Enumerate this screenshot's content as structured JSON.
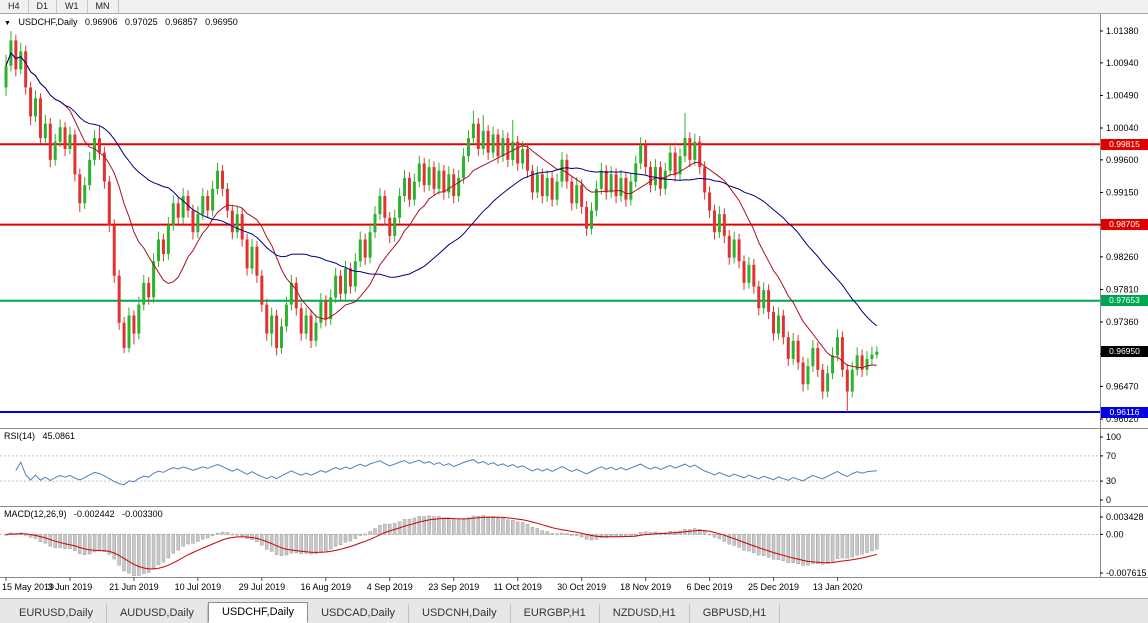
{
  "toolbar": {
    "periods": [
      "H4",
      "D1",
      "W1",
      "MN"
    ]
  },
  "main_chart_label": {
    "symbol": "USDCHF,Daily",
    "open": "0.96906",
    "high": "0.97025",
    "low": "0.96857",
    "close": "0.96950"
  },
  "rsi_label": {
    "name": "RSI(14)",
    "value": "45.0861"
  },
  "macd_label": {
    "name": "MACD(12,26,9)",
    "value1": "-0.002442",
    "value2": "-0.003300"
  },
  "tabs": {
    "items": [
      {
        "label": "EURUSD,Daily",
        "active": false
      },
      {
        "label": "AUDUSD,Daily",
        "active": false
      },
      {
        "label": "USDCHF,Daily",
        "active": true
      },
      {
        "label": "USDCAD,Daily",
        "active": false
      },
      {
        "label": "USDCNH,Daily",
        "active": false
      },
      {
        "label": "EURGBP,H1",
        "active": false
      },
      {
        "label": "NZDUSD,H1",
        "active": false
      },
      {
        "label": "GBPUSD,H1",
        "active": false
      }
    ]
  },
  "chart_data": {
    "type": "candlestick",
    "symbol": "USDCHF",
    "timeframe": "Daily",
    "colors": {
      "up": "#2DB22D",
      "down": "#E03232"
    },
    "price_range": {
      "top": 1.0138,
      "bottom": 0.9602
    },
    "price_axis_ticks": [
      "1.01380",
      "1.00940",
      "1.00490",
      "1.00040",
      "0.99600",
      "0.99150",
      "0.98700",
      "0.98260",
      "0.97810",
      "0.97360",
      "0.96920",
      "0.96470",
      "0.96020"
    ],
    "x_labels": [
      "15 May 2019",
      "3 Jun 2019",
      "21 Jun 2019",
      "10 Jul 2019",
      "29 Jul 2019",
      "16 Aug 2019",
      "4 Sep 2019",
      "23 Sep 2019",
      "11 Oct 2019",
      "30 Oct 2019",
      "18 Nov 2019",
      "6 Dec 2019",
      "25 Dec 2019",
      "13 Jan 2020"
    ],
    "x_label_interval": 13,
    "hlines": [
      {
        "price": 0.99815,
        "label": "0.99815",
        "color": "#E00000",
        "width": 2
      },
      {
        "price": 0.98705,
        "label": "0.98705",
        "color": "#E00000",
        "width": 2
      },
      {
        "price": 0.97653,
        "label": "0.97653",
        "color": "#00A550",
        "width": 2
      },
      {
        "price": 0.96116,
        "label": "0.96116",
        "color": "#0000E0",
        "width": 2
      }
    ],
    "current_price": {
      "price": 0.9695,
      "label": "0.96950",
      "color": "#000000"
    },
    "moving_averages": [
      {
        "period": 13,
        "color": "#AA1122",
        "name": "ma-fast"
      },
      {
        "period": 34,
        "color": "#000080",
        "name": "ma-slow"
      }
    ],
    "rsi": {
      "period": 14,
      "current": 45.0861,
      "color": "#4F81BD",
      "levels": [
        70,
        30
      ],
      "scale_ticks": [
        "100",
        "70",
        "30",
        "0"
      ]
    },
    "macd": {
      "fast": 12,
      "slow": 26,
      "signal": 9,
      "current_macd": -0.002442,
      "current_signal": -0.0033,
      "range": {
        "top": 0.003428,
        "bottom": -0.007615
      },
      "scale_ticks": [
        "0.003428",
        "0.00",
        "-0.007615"
      ],
      "hist_color": "#C8C8C8",
      "hist_stroke": "#9E9E9E",
      "signal_color": "#CC0000"
    },
    "candles": [
      [
        1.006,
        1.0105,
        1.0048,
        1.009
      ],
      [
        1.009,
        1.0138,
        1.0082,
        1.0125
      ],
      [
        1.0125,
        1.0133,
        1.0075,
        1.0085
      ],
      [
        1.0085,
        1.0122,
        1.0078,
        1.011
      ],
      [
        1.011,
        1.0118,
        1.005,
        1.006
      ],
      [
        1.006,
        1.0068,
        1.0008,
        1.002
      ],
      [
        1.002,
        1.0056,
        1.0012,
        1.0045
      ],
      [
        1.0045,
        1.0052,
        0.998,
        0.999
      ],
      [
        0.999,
        1.0022,
        0.9982,
        1.001
      ],
      [
        1.001,
        1.0018,
        0.995,
        0.996
      ],
      [
        0.996,
        0.9996,
        0.9952,
        0.9985
      ],
      [
        0.9985,
        1.0016,
        0.9978,
        1.0005
      ],
      [
        1.0005,
        1.0012,
        0.9965,
        0.9975
      ],
      [
        0.9975,
        1.0006,
        0.9968,
        0.9995
      ],
      [
        0.9995,
        1.0002,
        0.993,
        0.994
      ],
      [
        0.994,
        0.9948,
        0.9888,
        0.99
      ],
      [
        0.99,
        0.9936,
        0.9892,
        0.9925
      ],
      [
        0.9925,
        0.9971,
        0.9918,
        0.996
      ],
      [
        0.996,
        1.0001,
        0.9952,
        0.999
      ],
      [
        0.999,
        1.0008,
        0.996,
        0.997
      ],
      [
        0.997,
        0.9978,
        0.992,
        0.993
      ],
      [
        0.993,
        0.9938,
        0.986,
        0.987
      ],
      [
        0.987,
        0.9878,
        0.979,
        0.98
      ],
      [
        0.98,
        0.9808,
        0.9725,
        0.9735
      ],
      [
        0.9735,
        0.9743,
        0.9693,
        0.97
      ],
      [
        0.97,
        0.9756,
        0.9694,
        0.9745
      ],
      [
        0.9745,
        0.9752,
        0.9705,
        0.972
      ],
      [
        0.972,
        0.9771,
        0.9712,
        0.976
      ],
      [
        0.976,
        0.9801,
        0.9752,
        0.979
      ],
      [
        0.979,
        0.9798,
        0.976,
        0.977
      ],
      [
        0.977,
        0.9831,
        0.9762,
        0.982
      ],
      [
        0.982,
        0.9861,
        0.9812,
        0.985
      ],
      [
        0.985,
        0.9858,
        0.982,
        0.983
      ],
      [
        0.983,
        0.9881,
        0.9822,
        0.987
      ],
      [
        0.987,
        0.9911,
        0.9862,
        0.99
      ],
      [
        0.99,
        0.9908,
        0.987,
        0.988
      ],
      [
        0.988,
        0.9921,
        0.9872,
        0.991
      ],
      [
        0.991,
        0.9918,
        0.988,
        0.989
      ],
      [
        0.989,
        0.9898,
        0.985,
        0.986
      ],
      [
        0.986,
        0.9896,
        0.9852,
        0.9885
      ],
      [
        0.9885,
        0.9921,
        0.9877,
        0.991
      ],
      [
        0.991,
        0.9918,
        0.988,
        0.989
      ],
      [
        0.989,
        0.9931,
        0.9882,
        0.992
      ],
      [
        0.992,
        0.9956,
        0.9912,
        0.9945
      ],
      [
        0.9945,
        0.9953,
        0.991,
        0.992
      ],
      [
        0.992,
        0.9928,
        0.988,
        0.989
      ],
      [
        0.989,
        0.9898,
        0.985,
        0.986
      ],
      [
        0.986,
        0.9896,
        0.9852,
        0.9885
      ],
      [
        0.9885,
        0.9893,
        0.984,
        0.985
      ],
      [
        0.985,
        0.9858,
        0.98,
        0.981
      ],
      [
        0.981,
        0.9851,
        0.9802,
        0.984
      ],
      [
        0.984,
        0.9848,
        0.979,
        0.98
      ],
      [
        0.98,
        0.9808,
        0.975,
        0.976
      ],
      [
        0.976,
        0.9768,
        0.971,
        0.972
      ],
      [
        0.972,
        0.9756,
        0.9702,
        0.9745
      ],
      [
        0.9745,
        0.9753,
        0.969,
        0.97
      ],
      [
        0.97,
        0.9741,
        0.9692,
        0.973
      ],
      [
        0.973,
        0.9771,
        0.9722,
        0.976
      ],
      [
        0.976,
        0.9801,
        0.9752,
        0.979
      ],
      [
        0.979,
        0.9798,
        0.9745,
        0.9755
      ],
      [
        0.9755,
        0.9763,
        0.971,
        0.972
      ],
      [
        0.972,
        0.9756,
        0.9712,
        0.9745
      ],
      [
        0.9745,
        0.9753,
        0.97,
        0.971
      ],
      [
        0.971,
        0.9746,
        0.9702,
        0.9735
      ],
      [
        0.9735,
        0.9776,
        0.9727,
        0.9765
      ],
      [
        0.9765,
        0.9773,
        0.973,
        0.974
      ],
      [
        0.974,
        0.9781,
        0.9732,
        0.977
      ],
      [
        0.977,
        0.9811,
        0.9762,
        0.98
      ],
      [
        0.98,
        0.9808,
        0.9765,
        0.9775
      ],
      [
        0.9775,
        0.9821,
        0.9767,
        0.981
      ],
      [
        0.981,
        0.9818,
        0.9775,
        0.9785
      ],
      [
        0.9785,
        0.9831,
        0.9777,
        0.982
      ],
      [
        0.982,
        0.9861,
        0.9812,
        0.985
      ],
      [
        0.985,
        0.9858,
        0.9815,
        0.9825
      ],
      [
        0.9825,
        0.9871,
        0.9817,
        0.986
      ],
      [
        0.986,
        0.9896,
        0.9852,
        0.9885
      ],
      [
        0.9885,
        0.9921,
        0.9877,
        0.991
      ],
      [
        0.991,
        0.9918,
        0.987,
        0.988
      ],
      [
        0.988,
        0.9888,
        0.9845,
        0.9855
      ],
      [
        0.9855,
        0.9891,
        0.9847,
        0.988
      ],
      [
        0.988,
        0.9921,
        0.9872,
        0.991
      ],
      [
        0.991,
        0.9946,
        0.9902,
        0.9935
      ],
      [
        0.9935,
        0.9943,
        0.9895,
        0.9905
      ],
      [
        0.9905,
        0.9941,
        0.9897,
        0.993
      ],
      [
        0.993,
        0.9966,
        0.9922,
        0.9955
      ],
      [
        0.9955,
        0.9963,
        0.9915,
        0.9925
      ],
      [
        0.9925,
        0.9961,
        0.9917,
        0.995
      ],
      [
        0.995,
        0.9958,
        0.991,
        0.992
      ],
      [
        0.992,
        0.9956,
        0.9912,
        0.9945
      ],
      [
        0.9945,
        0.9953,
        0.9905,
        0.9915
      ],
      [
        0.9915,
        0.9951,
        0.9907,
        0.994
      ],
      [
        0.994,
        0.9948,
        0.99,
        0.991
      ],
      [
        0.991,
        0.9946,
        0.9902,
        0.9935
      ],
      [
        0.9935,
        0.9976,
        0.9927,
        0.9965
      ],
      [
        0.9965,
        1.0001,
        0.9957,
        0.999
      ],
      [
        0.999,
        1.0028,
        0.9982,
        1.001
      ],
      [
        1.001,
        1.0018,
        0.9965,
        0.9975
      ],
      [
        0.9975,
        1.0022,
        0.9967,
        1.0
      ],
      [
        1.0,
        1.0008,
        0.996,
        0.997
      ],
      [
        0.997,
        1.0006,
        0.9962,
        0.9995
      ],
      [
        0.9995,
        1.0003,
        0.9955,
        0.9965
      ],
      [
        0.9965,
        1.0001,
        0.9957,
        0.999
      ],
      [
        0.999,
        0.9998,
        0.995,
        0.996
      ],
      [
        0.996,
        1.0015,
        0.9952,
        0.9985
      ],
      [
        0.9985,
        0.9993,
        0.9945,
        0.9955
      ],
      [
        0.9955,
        0.9986,
        0.9947,
        0.9975
      ],
      [
        0.9975,
        0.9983,
        0.9935,
        0.9945
      ],
      [
        0.9945,
        0.9953,
        0.9905,
        0.9915
      ],
      [
        0.9915,
        0.9951,
        0.9907,
        0.994
      ],
      [
        0.994,
        0.9948,
        0.99,
        0.991
      ],
      [
        0.991,
        0.9946,
        0.9902,
        0.9935
      ],
      [
        0.9935,
        0.9943,
        0.9895,
        0.9905
      ],
      [
        0.9905,
        0.9941,
        0.9897,
        0.993
      ],
      [
        0.993,
        0.9971,
        0.9922,
        0.996
      ],
      [
        0.996,
        0.9968,
        0.992,
        0.993
      ],
      [
        0.993,
        0.9938,
        0.989,
        0.99
      ],
      [
        0.99,
        0.9936,
        0.9892,
        0.9925
      ],
      [
        0.9925,
        0.9933,
        0.9885,
        0.9895
      ],
      [
        0.9895,
        0.9903,
        0.9855,
        0.9865
      ],
      [
        0.9865,
        0.9901,
        0.9857,
        0.989
      ],
      [
        0.989,
        0.9931,
        0.9882,
        0.992
      ],
      [
        0.992,
        0.9956,
        0.9912,
        0.9945
      ],
      [
        0.9945,
        0.9953,
        0.9905,
        0.9915
      ],
      [
        0.9915,
        0.9951,
        0.9907,
        0.994
      ],
      [
        0.994,
        0.9948,
        0.99,
        0.991
      ],
      [
        0.991,
        0.9946,
        0.9902,
        0.9935
      ],
      [
        0.9935,
        0.9943,
        0.9895,
        0.9905
      ],
      [
        0.9905,
        0.9941,
        0.9897,
        0.993
      ],
      [
        0.993,
        0.9966,
        0.9922,
        0.9955
      ],
      [
        0.9955,
        0.9991,
        0.9947,
        0.998
      ],
      [
        0.998,
        0.9988,
        0.994,
        0.995
      ],
      [
        0.995,
        0.9958,
        0.9915,
        0.9925
      ],
      [
        0.9925,
        0.9961,
        0.9917,
        0.995
      ],
      [
        0.995,
        0.9958,
        0.991,
        0.992
      ],
      [
        0.992,
        0.9956,
        0.9912,
        0.9945
      ],
      [
        0.9945,
        0.9981,
        0.9937,
        0.997
      ],
      [
        0.997,
        0.9978,
        0.993,
        0.994
      ],
      [
        0.994,
        0.9976,
        0.9932,
        0.9965
      ],
      [
        0.9965,
        1.0025,
        0.9957,
        0.999
      ],
      [
        0.999,
        0.9998,
        0.995,
        0.996
      ],
      [
        0.996,
        0.9996,
        0.9952,
        0.9985
      ],
      [
        0.9985,
        0.9993,
        0.994,
        0.995
      ],
      [
        0.995,
        0.9958,
        0.9905,
        0.9915
      ],
      [
        0.9915,
        0.9923,
        0.988,
        0.989
      ],
      [
        0.989,
        0.9898,
        0.985,
        0.986
      ],
      [
        0.986,
        0.9896,
        0.9852,
        0.9885
      ],
      [
        0.9885,
        0.9893,
        0.9845,
        0.9855
      ],
      [
        0.9855,
        0.9863,
        0.9815,
        0.9825
      ],
      [
        0.9825,
        0.9861,
        0.9817,
        0.985
      ],
      [
        0.985,
        0.9858,
        0.981,
        0.982
      ],
      [
        0.982,
        0.9828,
        0.978,
        0.979
      ],
      [
        0.979,
        0.9826,
        0.9782,
        0.9815
      ],
      [
        0.9815,
        0.9823,
        0.9775,
        0.9785
      ],
      [
        0.9785,
        0.9793,
        0.9745,
        0.9755
      ],
      [
        0.9755,
        0.9791,
        0.9747,
        0.978
      ],
      [
        0.978,
        0.9788,
        0.974,
        0.975
      ],
      [
        0.975,
        0.9758,
        0.971,
        0.972
      ],
      [
        0.972,
        0.9756,
        0.9712,
        0.9745
      ],
      [
        0.9745,
        0.9753,
        0.9705,
        0.9715
      ],
      [
        0.9715,
        0.9723,
        0.9675,
        0.9685
      ],
      [
        0.9685,
        0.9721,
        0.9677,
        0.971
      ],
      [
        0.971,
        0.9718,
        0.967,
        0.968
      ],
      [
        0.968,
        0.9688,
        0.964,
        0.965
      ],
      [
        0.965,
        0.9686,
        0.9642,
        0.9675
      ],
      [
        0.9675,
        0.9711,
        0.9667,
        0.97
      ],
      [
        0.97,
        0.9708,
        0.966,
        0.967
      ],
      [
        0.967,
        0.9678,
        0.963,
        0.964
      ],
      [
        0.964,
        0.9676,
        0.9632,
        0.9665
      ],
      [
        0.9665,
        0.9701,
        0.9657,
        0.969
      ],
      [
        0.969,
        0.9726,
        0.9682,
        0.9715
      ],
      [
        0.9715,
        0.9723,
        0.966,
        0.967
      ],
      [
        0.967,
        0.9678,
        0.9612,
        0.964
      ],
      [
        0.964,
        0.9681,
        0.9632,
        0.967
      ],
      [
        0.967,
        0.9701,
        0.9662,
        0.969
      ],
      [
        0.969,
        0.9698,
        0.966,
        0.967
      ],
      [
        0.967,
        0.9696,
        0.9662,
        0.9685
      ],
      [
        0.9685,
        0.9702,
        0.9677,
        0.9691
      ],
      [
        0.96906,
        0.97025,
        0.96857,
        0.9695
      ]
    ]
  }
}
